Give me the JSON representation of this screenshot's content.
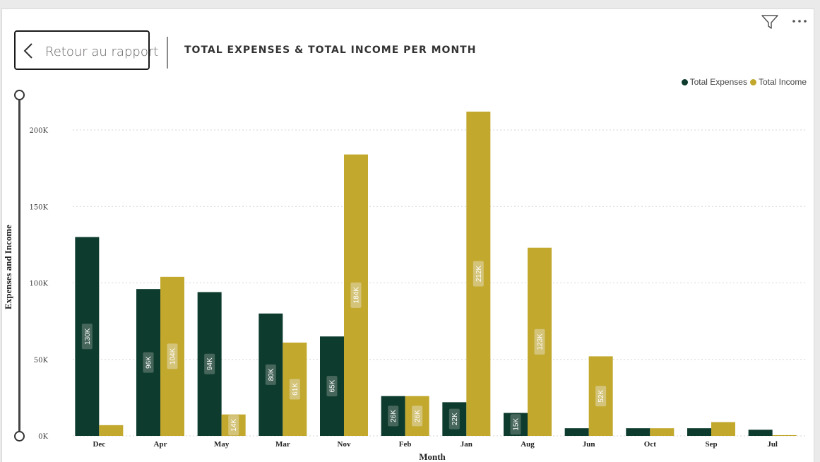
{
  "header": {
    "back_label": "Retour au rapport",
    "title": "TOTAL EXPENSES & TOTAL INCOME PER MONTH"
  },
  "icons": {
    "back": "chevron-left-icon",
    "filter": "filter-icon",
    "more": "more-options-icon"
  },
  "colors": {
    "expenses": "#0d3b2e",
    "income": "#c2a82d"
  },
  "chart_data": {
    "type": "bar",
    "title": "TOTAL EXPENSES & TOTAL INCOME PER MONTH",
    "xlabel": "Month",
    "ylabel": "Expenses and Income",
    "ylim": [
      0,
      220000
    ],
    "yticks": [
      0,
      50000,
      100000,
      150000,
      200000
    ],
    "ytick_labels": [
      "0K",
      "50K",
      "100K",
      "150K",
      "200K"
    ],
    "grid": true,
    "legend": "top-right",
    "categories": [
      "Dec",
      "Apr",
      "May",
      "Mar",
      "Nov",
      "Feb",
      "Jan",
      "Aug",
      "Jun",
      "Oct",
      "Sep",
      "Jul"
    ],
    "series": [
      {
        "name": "Total Expenses",
        "color": "#0d3b2e",
        "values": [
          130000,
          96000,
          94000,
          80000,
          65000,
          26000,
          22000,
          15000,
          5000,
          5000,
          5000,
          4000
        ],
        "labels": [
          "130K",
          "96K",
          "94K",
          "80K",
          "65K",
          "26K",
          "22K",
          "15K",
          "",
          "",
          "",
          ""
        ]
      },
      {
        "name": "Total Income",
        "color": "#c2a82d",
        "values": [
          7000,
          104000,
          14000,
          61000,
          184000,
          26000,
          212000,
          123000,
          52000,
          5000,
          9000,
          500
        ],
        "labels": [
          "",
          "104K",
          "14K",
          "61K",
          "184K",
          "26K",
          "212K",
          "123K",
          "52K",
          "",
          "",
          ""
        ]
      }
    ]
  }
}
